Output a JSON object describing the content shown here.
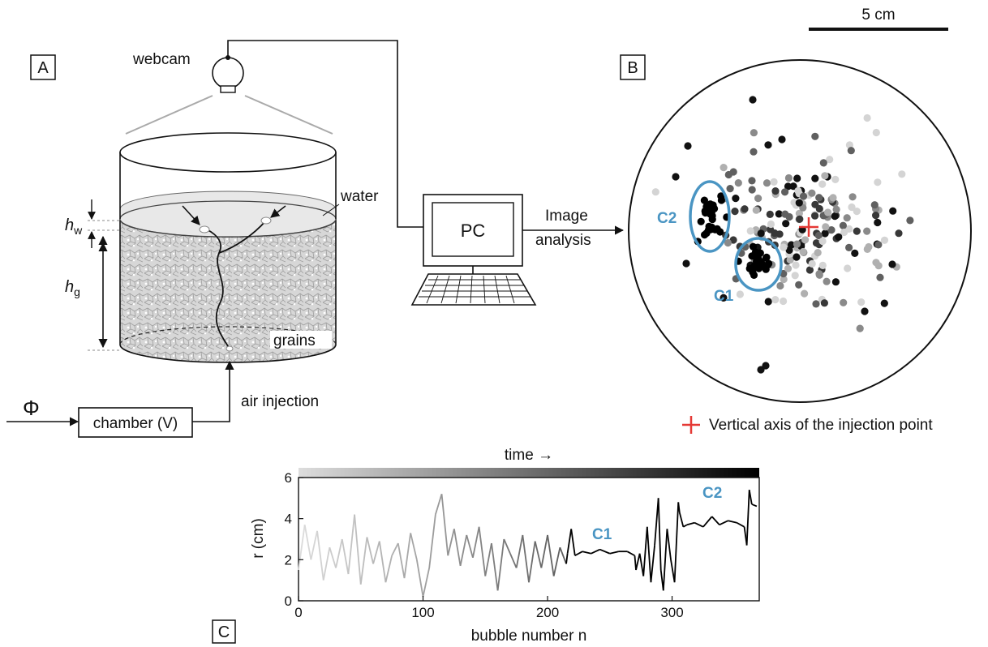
{
  "scale_bar": {
    "label": "5 cm"
  },
  "panel_a": {
    "letter": "A",
    "webcam_label": "webcam",
    "water_label": "water",
    "grains_label": "grains",
    "hw_label": {
      "main": "h",
      "sub": "w"
    },
    "hg_label": {
      "main": "h",
      "sub": "g"
    },
    "flow_symbol": "Φ",
    "chamber_label": "chamber (V)",
    "air_injection_label": "air injection"
  },
  "pc": {
    "label": "PC",
    "arrow_label_1": "Image",
    "arrow_label_2": "analysis"
  },
  "panel_b": {
    "letter": "B",
    "cluster_labels": [
      "C2",
      "C1"
    ],
    "legend_text": "Vertical axis of the injection point",
    "colors": {
      "cluster": "#4a95c3",
      "injection_mark": "#e53935"
    }
  },
  "panel_c": {
    "letter": "C",
    "time_label": "time →"
  },
  "chart_data": {
    "type": "line",
    "xlabel": "bubble number n",
    "ylabel": "r (cm)",
    "xlim": [
      0,
      370
    ],
    "ylim": [
      0,
      6
    ],
    "x_ticks": [
      "0",
      "100",
      "200",
      "300"
    ],
    "y_ticks": [
      "0",
      "2",
      "4",
      "6"
    ],
    "annotations": [
      "C1",
      "C2"
    ],
    "segments": [
      {
        "x": [
          0,
          5,
          10,
          15,
          20,
          25,
          30,
          35,
          40,
          45,
          50,
          55,
          60,
          65,
          70,
          75,
          80,
          85,
          90,
          95,
          100,
          105,
          110,
          115,
          120,
          125,
          130,
          135,
          140,
          145,
          150,
          155,
          160,
          165,
          170,
          175,
          180,
          185,
          190,
          195,
          200,
          205,
          210,
          215
        ],
        "y": [
          1.5,
          3.7,
          2.0,
          3.4,
          1.0,
          2.6,
          1.6,
          3.0,
          1.3,
          4.2,
          0.8,
          3.1,
          1.8,
          2.9,
          0.9,
          2.2,
          2.8,
          1.1,
          3.3,
          2.0,
          0.2,
          1.6,
          4.2,
          5.2,
          2.2,
          3.5,
          1.7,
          3.2,
          2.1,
          3.6,
          1.2,
          2.8,
          0.5,
          3.0,
          2.3,
          1.6,
          3.2,
          0.9,
          2.9,
          1.6,
          3.2,
          1.2,
          2.6,
          1.8
        ]
      },
      {
        "x": [
          216,
          219,
          222,
          228,
          235,
          242,
          250,
          257,
          264,
          270
        ],
        "y": [
          2.3,
          3.5,
          2.2,
          2.4,
          2.3,
          2.5,
          2.3,
          2.4,
          2.4,
          2.2
        ]
      },
      {
        "x": [
          271,
          274,
          277,
          280,
          283,
          286,
          289,
          291,
          293,
          296,
          299,
          302,
          305
        ],
        "y": [
          1.5,
          2.3,
          1.2,
          3.6,
          0.9,
          2.7,
          5.0,
          1.5,
          0.5,
          3.5,
          2.0,
          0.9,
          4.8
        ]
      },
      {
        "x": [
          306,
          309,
          312,
          318,
          325,
          332,
          338,
          345,
          352,
          358,
          360,
          362,
          364,
          368
        ],
        "y": [
          4.3,
          3.6,
          3.7,
          3.8,
          3.6,
          4.1,
          3.7,
          3.9,
          3.8,
          3.6,
          2.7,
          5.4,
          4.7,
          4.6
        ]
      }
    ]
  }
}
